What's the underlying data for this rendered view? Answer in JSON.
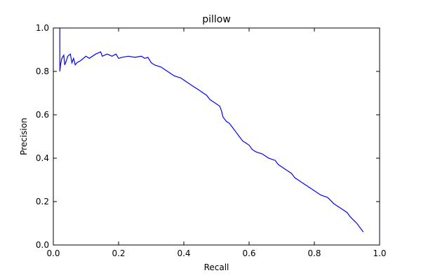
{
  "chart_data": {
    "type": "line",
    "title": "pillow",
    "xlabel": "Recall",
    "ylabel": "Precision",
    "xlim": [
      0.0,
      1.0
    ],
    "ylim": [
      0.0,
      1.0
    ],
    "xticks": [
      "0.0",
      "0.2",
      "0.4",
      "0.6",
      "0.8",
      "1.0"
    ],
    "yticks": [
      "0.0",
      "0.2",
      "0.4",
      "0.6",
      "0.8",
      "1.0"
    ],
    "grid": false,
    "legend": false,
    "series": [
      {
        "color": "#0000ff",
        "x": [
          0.02,
          0.02,
          0.022,
          0.026,
          0.032,
          0.035,
          0.04,
          0.044,
          0.052,
          0.057,
          0.062,
          0.067,
          0.072,
          0.084,
          0.1,
          0.11,
          0.13,
          0.145,
          0.15,
          0.165,
          0.18,
          0.192,
          0.2,
          0.21,
          0.23,
          0.25,
          0.27,
          0.28,
          0.29,
          0.3,
          0.31,
          0.32,
          0.33,
          0.34,
          0.35,
          0.36,
          0.37,
          0.38,
          0.39,
          0.4,
          0.41,
          0.42,
          0.43,
          0.44,
          0.45,
          0.46,
          0.47,
          0.48,
          0.49,
          0.5,
          0.51,
          0.515,
          0.52,
          0.53,
          0.54,
          0.55,
          0.56,
          0.57,
          0.58,
          0.59,
          0.6,
          0.61,
          0.62,
          0.63,
          0.64,
          0.65,
          0.66,
          0.67,
          0.68,
          0.69,
          0.7,
          0.71,
          0.72,
          0.73,
          0.74,
          0.75,
          0.76,
          0.77,
          0.78,
          0.79,
          0.8,
          0.81,
          0.82,
          0.83,
          0.84,
          0.85,
          0.86,
          0.87,
          0.88,
          0.89,
          0.9,
          0.91,
          0.92,
          0.93,
          0.94,
          0.95
        ],
        "y": [
          1.0,
          0.8,
          0.83,
          0.86,
          0.875,
          0.83,
          0.85,
          0.87,
          0.88,
          0.84,
          0.86,
          0.83,
          0.84,
          0.85,
          0.87,
          0.86,
          0.88,
          0.89,
          0.87,
          0.88,
          0.87,
          0.88,
          0.86,
          0.865,
          0.87,
          0.865,
          0.87,
          0.86,
          0.865,
          0.84,
          0.83,
          0.825,
          0.82,
          0.81,
          0.8,
          0.79,
          0.78,
          0.775,
          0.77,
          0.76,
          0.75,
          0.74,
          0.73,
          0.72,
          0.71,
          0.7,
          0.69,
          0.67,
          0.66,
          0.65,
          0.64,
          0.62,
          0.59,
          0.57,
          0.56,
          0.54,
          0.52,
          0.5,
          0.48,
          0.47,
          0.46,
          0.44,
          0.43,
          0.425,
          0.42,
          0.41,
          0.4,
          0.395,
          0.39,
          0.37,
          0.36,
          0.35,
          0.34,
          0.33,
          0.31,
          0.3,
          0.29,
          0.28,
          0.27,
          0.26,
          0.25,
          0.24,
          0.23,
          0.225,
          0.22,
          0.205,
          0.19,
          0.18,
          0.17,
          0.16,
          0.15,
          0.13,
          0.115,
          0.1,
          0.08,
          0.06
        ]
      }
    ]
  }
}
